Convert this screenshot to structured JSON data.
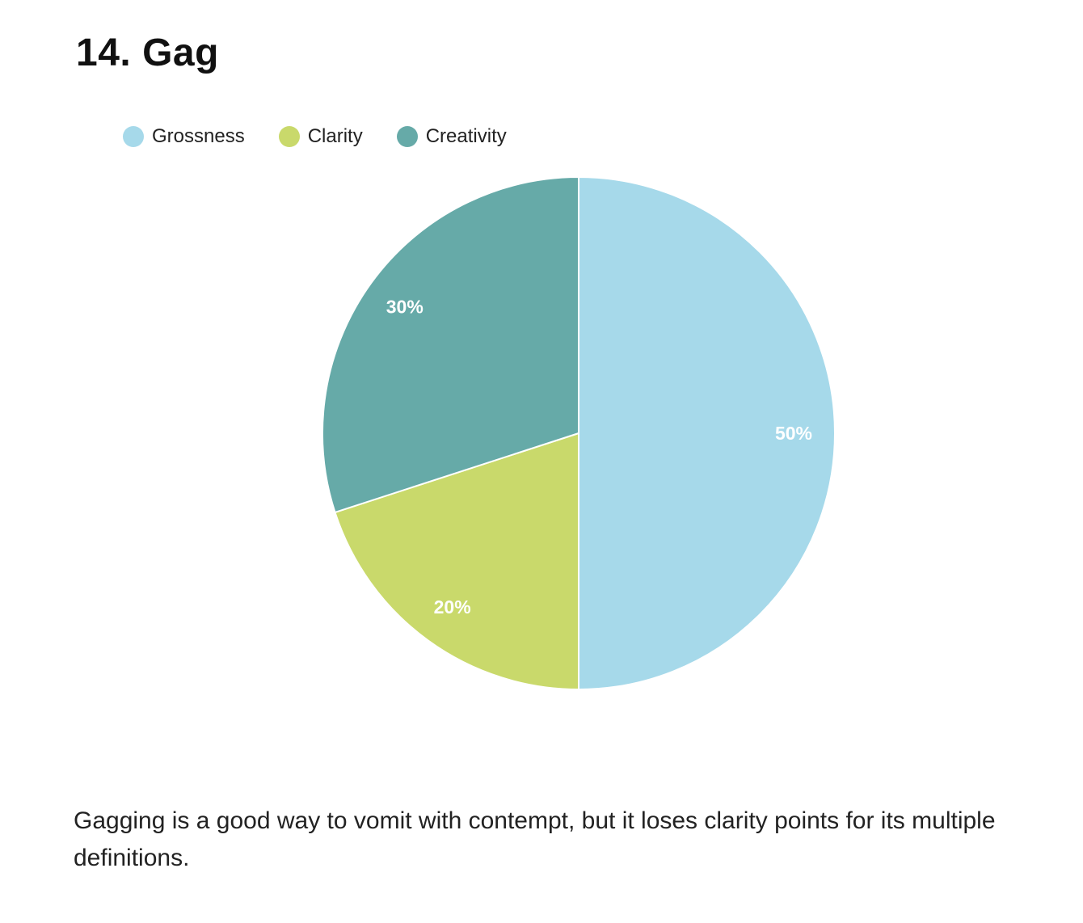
{
  "heading": "14. Gag",
  "chart_data": {
    "type": "pie",
    "categories": [
      "Grossness",
      "Clarity",
      "Creativity"
    ],
    "values": [
      50,
      20,
      30
    ],
    "labels": [
      "50%",
      "20%",
      "30%"
    ],
    "colors": [
      "#a6d9ea",
      "#c9d96b",
      "#66aaa8"
    ],
    "legend_position": "top-left",
    "title": "",
    "slice_label_color": "#ffffff"
  },
  "caption": "Gagging is a good way to vomit with contempt, but it loses clarity points for its multiple definitions."
}
